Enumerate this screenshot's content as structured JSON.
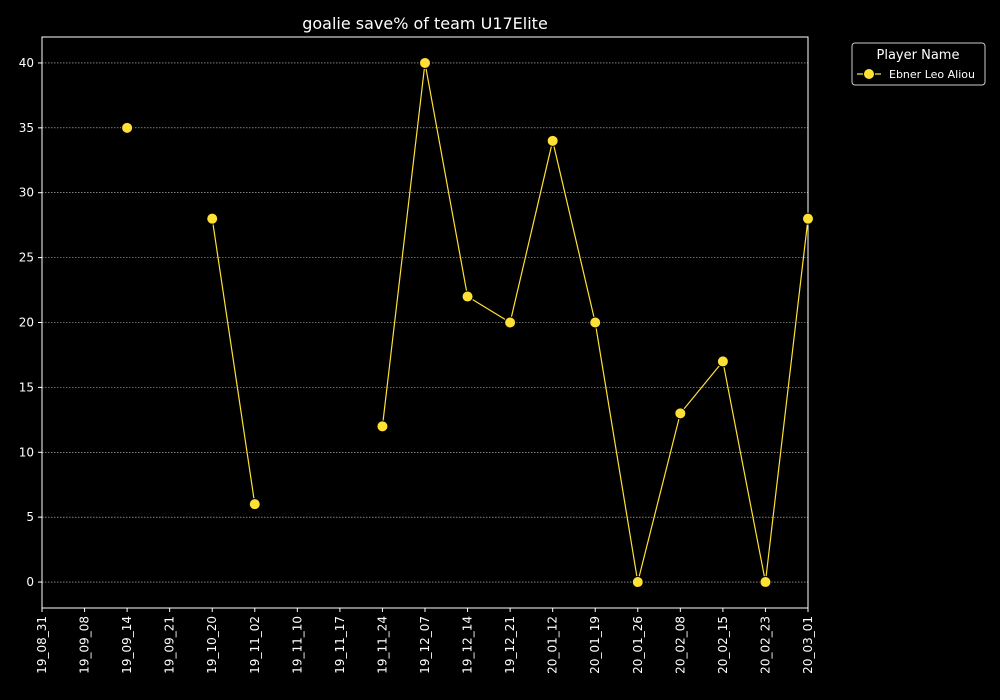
{
  "chart_data": {
    "type": "line",
    "title": "goalie save% of team U17Elite",
    "xlabel": "",
    "ylabel": "",
    "categories": [
      "19_08_31",
      "19_09_08",
      "19_09_14",
      "19_09_21",
      "19_10_20",
      "19_11_02",
      "19_11_10",
      "19_11_17",
      "19_11_24",
      "19_12_07",
      "19_12_14",
      "19_12_21",
      "20_01_12",
      "20_01_19",
      "20_01_26",
      "20_02_08",
      "20_02_15",
      "20_02_23",
      "20_03_01"
    ],
    "yticks": [
      0,
      5,
      10,
      15,
      20,
      25,
      30,
      35,
      40
    ],
    "ylim": [
      -2,
      42
    ],
    "grid": true,
    "legend": {
      "title": "Player Name",
      "position": "outside top-right"
    },
    "series": [
      {
        "name": "Ebner Leo Aliou",
        "color": "#ffe135",
        "values": [
          null,
          null,
          35,
          null,
          28,
          6,
          null,
          null,
          12,
          40,
          22,
          20,
          34,
          20,
          0,
          13,
          17,
          0,
          28
        ]
      }
    ]
  }
}
